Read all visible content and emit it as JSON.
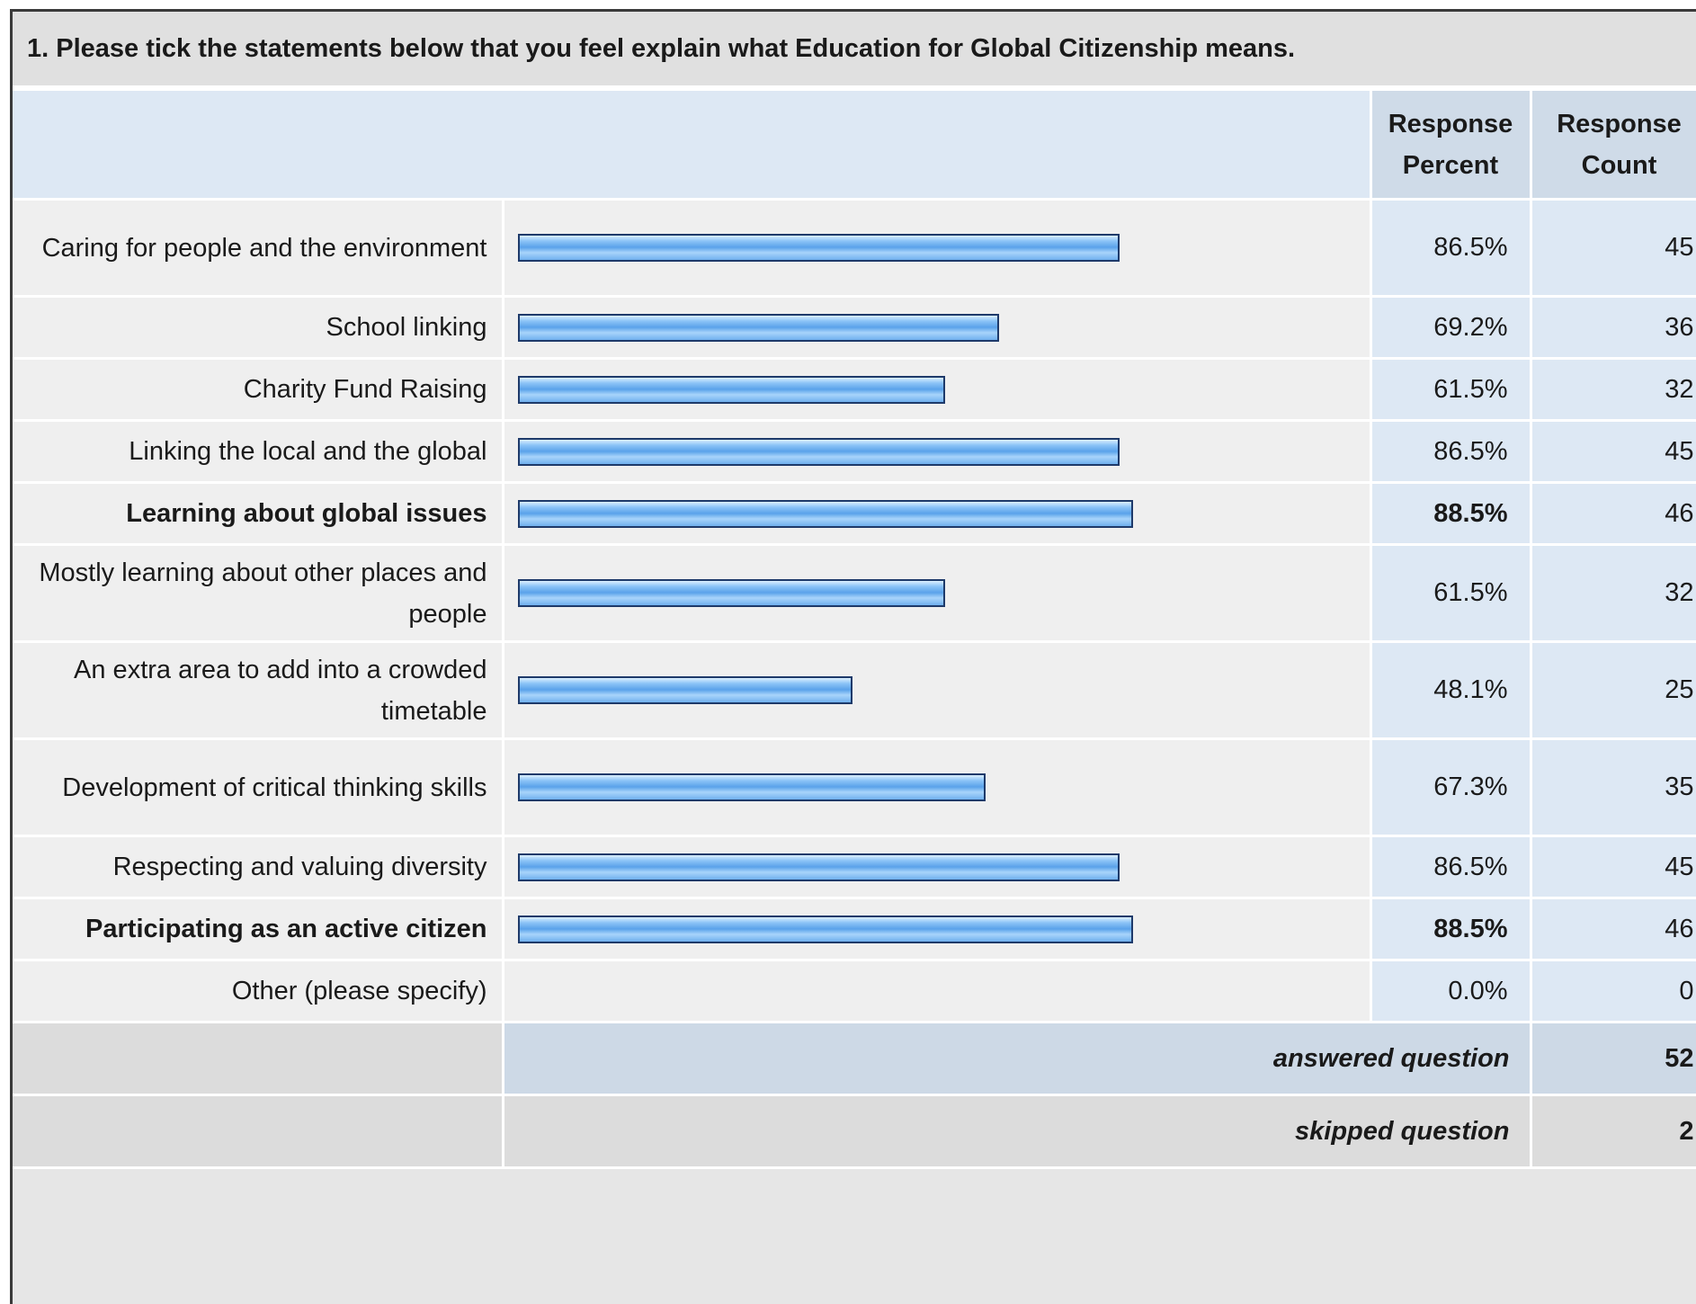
{
  "question": {
    "title": "1. Please tick the statements below that you feel explain what Education for Global Citizenship means."
  },
  "columns": {
    "percent_line1": "Response",
    "percent_line2": "Percent",
    "count_line1": "Response",
    "count_line2": "Count"
  },
  "chart_data": {
    "type": "bar",
    "orientation": "horizontal",
    "title": "1. Please tick the statements below that you feel explain what Education for Global Citizenship means.",
    "categories": [
      "Caring for people and the environment",
      "School linking",
      "Charity Fund Raising",
      "Linking the local and the global",
      "Learning about global issues",
      "Mostly learning about other places and people",
      "An extra area to add into a crowded timetable",
      "Development of critical thinking skills",
      "Respecting and valuing diversity",
      "Participating as an active citizen",
      "Other (please specify)"
    ],
    "series": [
      {
        "name": "Response Percent",
        "values": [
          86.5,
          69.2,
          61.5,
          86.5,
          88.5,
          61.5,
          48.1,
          67.3,
          86.5,
          88.5,
          0.0
        ]
      },
      {
        "name": "Response Count",
        "values": [
          45,
          36,
          32,
          45,
          46,
          32,
          25,
          35,
          45,
          46,
          0
        ]
      }
    ],
    "xlim": [
      0,
      100
    ],
    "bar_color": "#6fb0ee"
  },
  "rows": [
    {
      "label": "Caring for people and the environment",
      "percent": 86.5,
      "percent_text": "86.5%",
      "count": "45",
      "bold": false
    },
    {
      "label": "School linking",
      "percent": 69.2,
      "percent_text": "69.2%",
      "count": "36",
      "bold": false
    },
    {
      "label": "Charity Fund Raising",
      "percent": 61.5,
      "percent_text": "61.5%",
      "count": "32",
      "bold": false
    },
    {
      "label": "Linking the local and the global",
      "percent": 86.5,
      "percent_text": "86.5%",
      "count": "45",
      "bold": false
    },
    {
      "label": "Learning about global issues",
      "percent": 88.5,
      "percent_text": "88.5%",
      "count": "46",
      "bold": true
    },
    {
      "label": "Mostly learning about other places and people",
      "percent": 61.5,
      "percent_text": "61.5%",
      "count": "32",
      "bold": false
    },
    {
      "label": "An extra area to add into a crowded timetable",
      "percent": 48.1,
      "percent_text": "48.1%",
      "count": "25",
      "bold": false
    },
    {
      "label": "Development of critical thinking skills",
      "percent": 67.3,
      "percent_text": "67.3%",
      "count": "35",
      "bold": false
    },
    {
      "label": "Respecting and valuing diversity",
      "percent": 86.5,
      "percent_text": "86.5%",
      "count": "45",
      "bold": false
    },
    {
      "label": "Participating as an active citizen",
      "percent": 88.5,
      "percent_text": "88.5%",
      "count": "46",
      "bold": true
    },
    {
      "label": "Other (please specify)",
      "percent": 0.0,
      "percent_text": "0.0%",
      "count": "0",
      "bold": false
    }
  ],
  "footer": {
    "answered_label": "answered question",
    "answered_value": "52",
    "skipped_label": "skipped question",
    "skipped_value": "2"
  }
}
